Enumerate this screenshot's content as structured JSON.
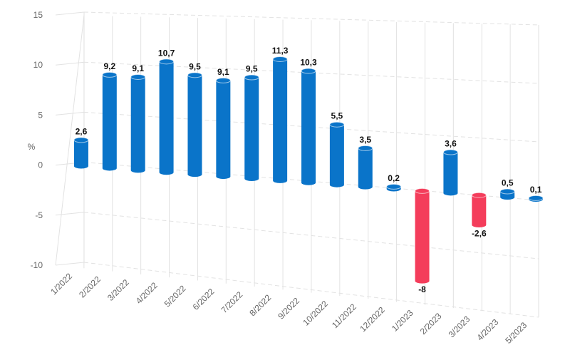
{
  "chart_data": {
    "type": "bar",
    "ylabel": "%",
    "ylim": [
      -10,
      15
    ],
    "yticks": [
      "15",
      "10",
      "5",
      "0",
      "-5",
      "-10"
    ],
    "grid": true,
    "categories": [
      "1/2022",
      "2/2022",
      "3/2022",
      "4/2022",
      "5/2022",
      "6/2022",
      "7/2022",
      "8/2022",
      "9/2022",
      "10/2022",
      "11/2022",
      "12/2022",
      "1/2023",
      "2/2023",
      "3/2023",
      "4/2023",
      "5/2023"
    ],
    "values": [
      2.6,
      9.2,
      9.1,
      10.7,
      9.5,
      9.1,
      9.5,
      11.3,
      10.3,
      5.5,
      3.5,
      0.2,
      -8,
      3.6,
      -2.6,
      0.5,
      0.1
    ],
    "value_labels": [
      "2,6",
      "9,2",
      "9,1",
      "10,7",
      "9,5",
      "9,1",
      "9,5",
      "11,3",
      "10,3",
      "5,5",
      "3,5",
      "0,2",
      "-8",
      "3,6",
      "-2,6",
      "0,5",
      "0,1"
    ],
    "colors": {
      "positive": "#0a74c9",
      "negative": "#f43d5b",
      "grid": "#e2e2e2"
    }
  }
}
